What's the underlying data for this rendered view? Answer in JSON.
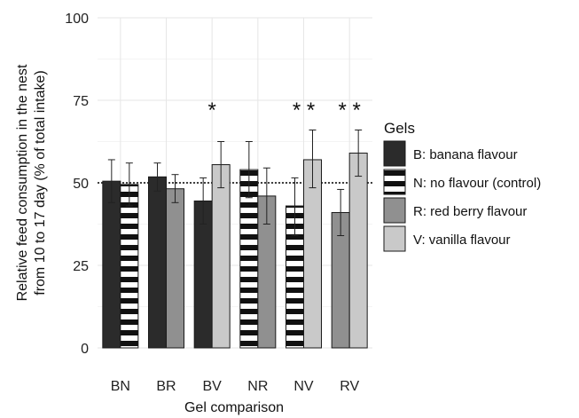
{
  "chart_data": {
    "type": "bar",
    "xlabel": "Gel comparison",
    "ylabel_lines": [
      "Relative feed consumption in the nest",
      "from 10 to 17 day (% of total intake)"
    ],
    "ylim": [
      0,
      100
    ],
    "yticks": [
      "0",
      "25",
      "50",
      "75",
      "100"
    ],
    "reference_line": 50,
    "grid": true,
    "categories": [
      "BN",
      "BR",
      "BV",
      "NR",
      "NV",
      "RV"
    ],
    "bars": [
      {
        "category": "BN",
        "pair": [
          {
            "gel": "B",
            "value": 50.5,
            "err": [
              44,
              57
            ]
          },
          {
            "gel": "N",
            "value": 49.5,
            "err": [
              43,
              56
            ]
          }
        ],
        "significance": ""
      },
      {
        "category": "BR",
        "pair": [
          {
            "gel": "B",
            "value": 51.8,
            "err": [
              47.5,
              56
            ]
          },
          {
            "gel": "R",
            "value": 48.2,
            "err": [
              44,
              52.5
            ]
          }
        ],
        "significance": ""
      },
      {
        "category": "BV",
        "pair": [
          {
            "gel": "B",
            "value": 44.5,
            "err": [
              37.5,
              51.5
            ]
          },
          {
            "gel": "V",
            "value": 55.5,
            "err": [
              48.5,
              62.5
            ]
          }
        ],
        "significance": "*"
      },
      {
        "category": "NR",
        "pair": [
          {
            "gel": "N",
            "value": 54,
            "err": [
              45.5,
              62.5
            ]
          },
          {
            "gel": "R",
            "value": 46,
            "err": [
              37.5,
              54.5
            ]
          }
        ],
        "significance": ""
      },
      {
        "category": "NV",
        "pair": [
          {
            "gel": "N",
            "value": 43,
            "err": [
              34,
              51.5
            ]
          },
          {
            "gel": "V",
            "value": 57,
            "err": [
              48.5,
              66
            ]
          }
        ],
        "significance": "* *"
      },
      {
        "category": "RV",
        "pair": [
          {
            "gel": "R",
            "value": 41,
            "err": [
              34,
              48
            ]
          },
          {
            "gel": "V",
            "value": 59,
            "err": [
              52,
              66
            ]
          }
        ],
        "significance": "* *"
      }
    ],
    "legend": {
      "title": "Gels",
      "placement": "right",
      "items": [
        {
          "key": "B",
          "label": "B: banana flavour",
          "color": "#2b2b2b"
        },
        {
          "key": "N",
          "label": "N: no flavour (control)",
          "pattern": "stripes"
        },
        {
          "key": "R",
          "label": "R: red berry flavour",
          "color": "#909090"
        },
        {
          "key": "V",
          "label": "V: vanilla flavour",
          "color": "#c9c9c9"
        }
      ]
    }
  }
}
